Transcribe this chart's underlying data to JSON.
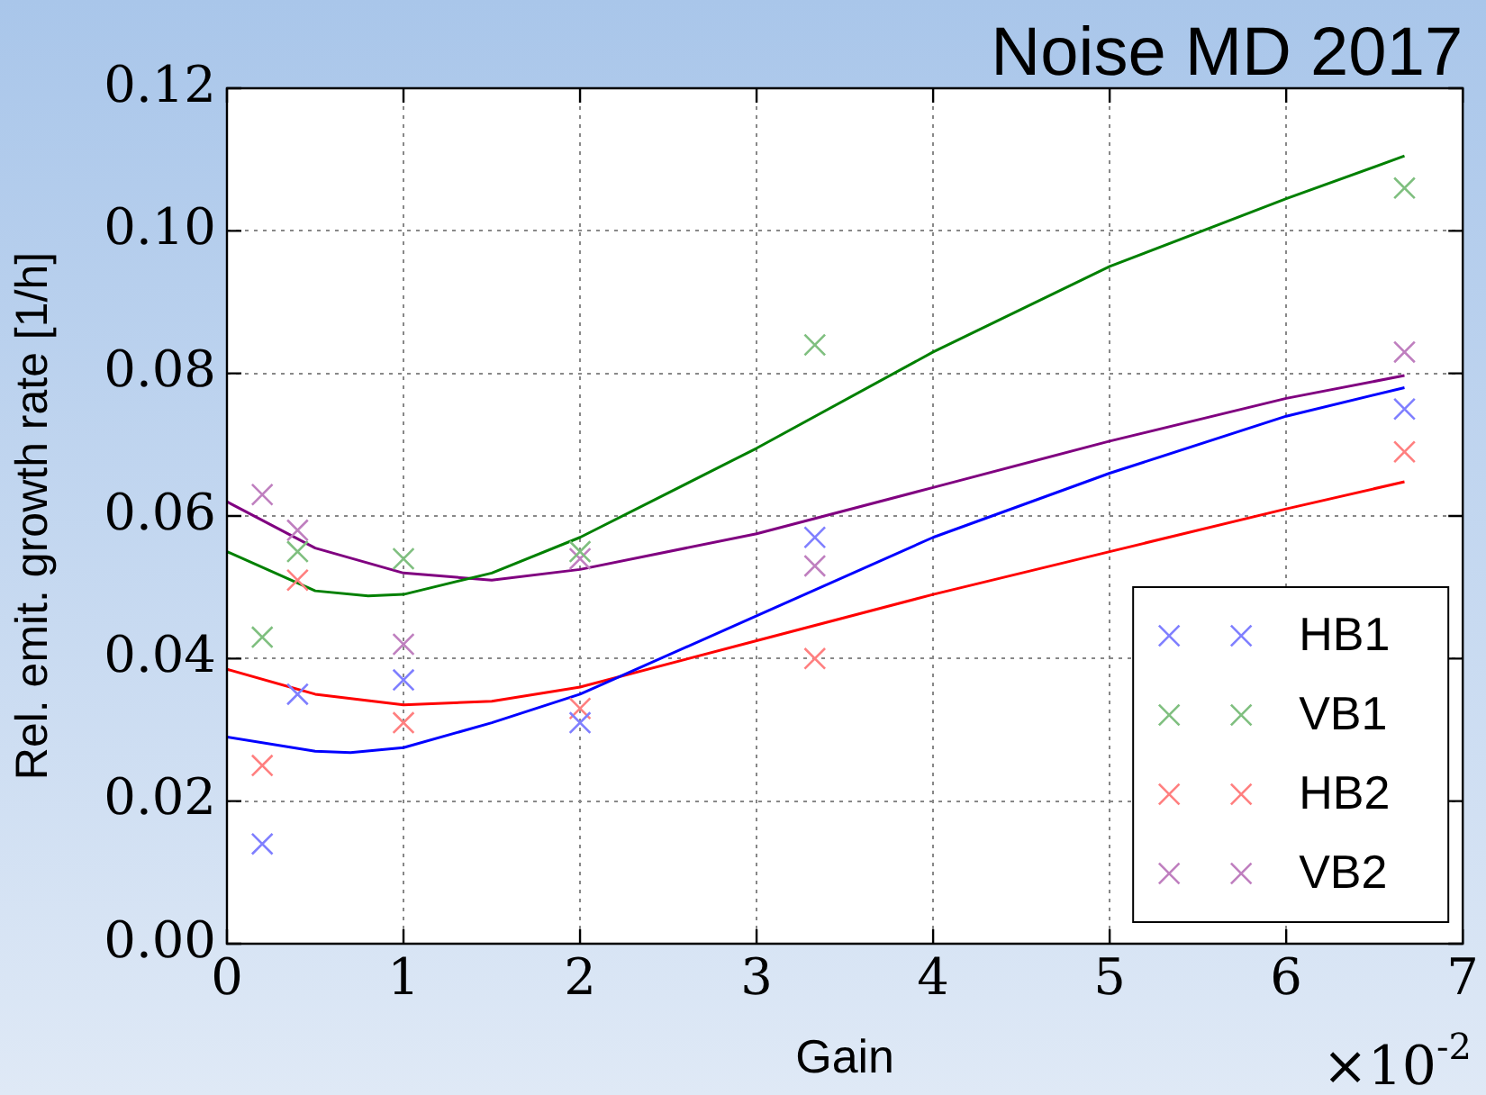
{
  "chart_data": {
    "type": "scatter",
    "title": "Noise MD 2017",
    "xlabel": "Gain",
    "ylabel": "Rel. emit. growth rate [1/h]",
    "annotations": [
      "×10$^{-2}$"
    ],
    "xlim": [
      0,
      7
    ],
    "xticks": [
      0,
      1,
      2,
      3,
      4,
      5,
      6,
      7
    ],
    "ylim": [
      0,
      0.12
    ],
    "yticks": [
      {
        "value": 0,
        "label": "0.00"
      },
      {
        "value": 0.02,
        "label": "0.02"
      },
      {
        "value": 0.04,
        "label": "0.04"
      },
      {
        "value": 0.06,
        "label": "0.06"
      },
      {
        "value": 0.08,
        "label": "0.08"
      },
      {
        "value": 0.1,
        "label": "0.10"
      },
      {
        "value": 0.12,
        "label": "0.12"
      }
    ],
    "grid": true,
    "legend": "bottom right",
    "marker": "cross",
    "series": [
      {
        "name": "HB1",
        "type": "scatter",
        "color": "#7f7fff",
        "x": [
          0.2,
          0.4,
          1,
          2,
          3.33,
          6.67
        ],
        "values": [
          0.014,
          0.035,
          0.037,
          0.031,
          0.057,
          0.075
        ]
      },
      {
        "name": "VB1",
        "type": "scatter",
        "color": "#7fbf7f",
        "x": [
          0.2,
          0.4,
          1,
          2,
          3.33,
          6.67
        ],
        "values": [
          0.043,
          0.055,
          0.054,
          0.055,
          0.084,
          0.106
        ]
      },
      {
        "name": "HB2",
        "type": "scatter",
        "color": "#ff7f7f",
        "x": [
          0.2,
          0.4,
          1,
          2,
          3.33,
          6.67
        ],
        "values": [
          0.025,
          0.051,
          0.031,
          0.033,
          0.04,
          0.069
        ]
      },
      {
        "name": "VB2",
        "type": "scatter",
        "color": "#bf7fbf",
        "x": [
          0.2,
          0.4,
          1,
          2,
          3.33,
          6.67
        ],
        "values": [
          0.063,
          0.058,
          0.042,
          0.054,
          0.053,
          0.083
        ]
      },
      {
        "type": "line",
        "marker": "none",
        "color": "#0000ff",
        "x": [
          0,
          0.5,
          0.7,
          1,
          1.5,
          2,
          3,
          4,
          5,
          6,
          6.67
        ],
        "values": [
          0.029,
          0.027,
          0.0268,
          0.0275,
          0.031,
          0.035,
          0.046,
          0.057,
          0.066,
          0.074,
          0.078
        ]
      },
      {
        "type": "line",
        "marker": "none",
        "color": "#008000",
        "x": [
          0,
          0.5,
          0.8,
          1,
          1.5,
          2,
          3,
          4,
          5,
          6,
          6.67
        ],
        "values": [
          0.055,
          0.0495,
          0.0488,
          0.049,
          0.052,
          0.057,
          0.0695,
          0.083,
          0.095,
          0.1045,
          0.1105
        ]
      },
      {
        "type": "line",
        "marker": "none",
        "color": "#ff0000",
        "x": [
          0,
          0.5,
          1,
          1.5,
          2,
          3,
          4,
          5,
          6,
          6.67
        ],
        "values": [
          0.0385,
          0.035,
          0.0335,
          0.034,
          0.036,
          0.0425,
          0.049,
          0.055,
          0.061,
          0.0648
        ]
      },
      {
        "type": "line",
        "marker": "none",
        "color": "#800080",
        "x": [
          0,
          0.5,
          1,
          1.5,
          2,
          3,
          4,
          5,
          6,
          6.67
        ],
        "values": [
          0.062,
          0.0555,
          0.052,
          0.051,
          0.0525,
          0.0575,
          0.064,
          0.0705,
          0.0765,
          0.0797
        ]
      }
    ]
  }
}
